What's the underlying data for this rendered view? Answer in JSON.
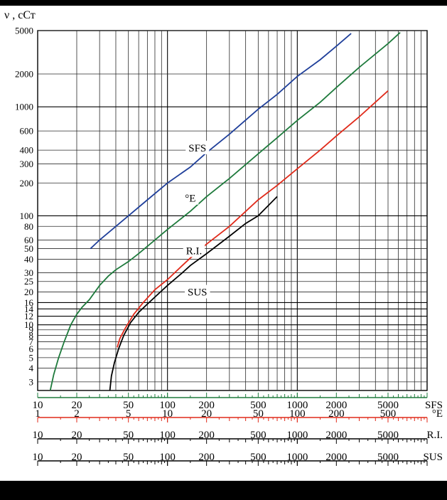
{
  "chart_data": {
    "type": "line",
    "title": "",
    "ylabel": "ν , сСт",
    "yscale": "log",
    "ylim": [
      2.5,
      5000
    ],
    "xscale": "log",
    "xlim": [
      10,
      10000
    ],
    "yticks": [
      3,
      4,
      5,
      6,
      7,
      8,
      9,
      10,
      12,
      14,
      16,
      20,
      25,
      30,
      40,
      50,
      60,
      80,
      100,
      200,
      300,
      400,
      600,
      1000,
      2000,
      5000
    ],
    "series": [
      {
        "name": "SFS",
        "color": "#1f3f9a",
        "label_at": [
          170,
          420
        ],
        "points": [
          [
            25.5,
            50
          ],
          [
            30,
            60
          ],
          [
            40,
            80
          ],
          [
            50,
            100
          ],
          [
            70,
            140
          ],
          [
            100,
            200
          ],
          [
            150,
            280
          ],
          [
            200,
            380
          ],
          [
            300,
            560
          ],
          [
            500,
            950
          ],
          [
            700,
            1300
          ],
          [
            1000,
            1900
          ],
          [
            1500,
            2700
          ],
          [
            2000,
            3600
          ],
          [
            2600,
            4700
          ]
        ]
      },
      {
        "name": "°E",
        "color": "#1e7a3c",
        "label_at": [
          150,
          145
        ],
        "points": [
          [
            12.5,
            2.5
          ],
          [
            13.3,
            3.5
          ],
          [
            14.5,
            5
          ],
          [
            16,
            7
          ],
          [
            18,
            10
          ],
          [
            20,
            12.5
          ],
          [
            22,
            14.5
          ],
          [
            25,
            17
          ],
          [
            30,
            23
          ],
          [
            35,
            28
          ],
          [
            40,
            32
          ],
          [
            50,
            38
          ],
          [
            60,
            45
          ],
          [
            80,
            60
          ],
          [
            100,
            75
          ],
          [
            150,
            110
          ],
          [
            200,
            150
          ],
          [
            300,
            220
          ],
          [
            500,
            370
          ],
          [
            700,
            520
          ],
          [
            1000,
            750
          ],
          [
            1500,
            1100
          ],
          [
            2000,
            1500
          ],
          [
            3000,
            2300
          ],
          [
            5000,
            3800
          ],
          [
            6200,
            4800
          ]
        ]
      },
      {
        "name": "R.I.",
        "color": "#e02a1a",
        "label_at": [
          160,
          48
        ],
        "points": [
          [
            41,
            6.2
          ],
          [
            43,
            7.5
          ],
          [
            47,
            9.2
          ],
          [
            55,
            12.5
          ],
          [
            65,
            16
          ],
          [
            80,
            21
          ],
          [
            100,
            26
          ],
          [
            130,
            35
          ],
          [
            150,
            41
          ],
          [
            200,
            55
          ],
          [
            300,
            80
          ],
          [
            500,
            140
          ],
          [
            700,
            190
          ],
          [
            1000,
            270
          ],
          [
            1500,
            400
          ],
          [
            2000,
            540
          ],
          [
            3000,
            810
          ],
          [
            5000,
            1400
          ]
        ]
      },
      {
        "name": "SUS",
        "color": "#000000",
        "label_at": [
          170,
          20
        ],
        "points": [
          [
            36,
            2.5
          ],
          [
            37,
            3.4
          ],
          [
            39,
            4.5
          ],
          [
            42,
            6
          ],
          [
            46,
            8
          ],
          [
            52,
            10.5
          ],
          [
            60,
            13
          ],
          [
            70,
            15.5
          ],
          [
            80,
            18
          ],
          [
            100,
            23
          ],
          [
            130,
            30
          ],
          [
            150,
            35
          ],
          [
            200,
            45
          ],
          [
            300,
            65
          ],
          [
            400,
            85
          ],
          [
            500,
            100
          ],
          [
            700,
            150
          ]
        ]
      }
    ],
    "scales": [
      {
        "name": "SFS",
        "color": "#1e7a3c",
        "labels": [
          "10",
          "20",
          "50",
          "100",
          "200",
          "500",
          "1000",
          "2000",
          "5000"
        ],
        "label_values": [
          10,
          20,
          50,
          100,
          200,
          500,
          1000,
          2000,
          5000
        ]
      },
      {
        "name": "°E",
        "color": "#e02a1a",
        "labels": [
          "1",
          "2",
          "5",
          "10",
          "20",
          "50",
          "100",
          "200",
          "500"
        ],
        "label_values": [
          1,
          2,
          5,
          10,
          20,
          50,
          100,
          200,
          500
        ]
      },
      {
        "name": "R.I.",
        "color": "#000000",
        "labels": [
          "10",
          "20",
          "50",
          "100",
          "200",
          "500",
          "1000",
          "2000",
          "5000"
        ],
        "label_values": [
          10,
          20,
          50,
          100,
          200,
          500,
          1000,
          2000,
          5000
        ]
      },
      {
        "name": "SUS",
        "color": "#000000",
        "labels": [
          "10",
          "20",
          "50",
          "100",
          "200",
          "500",
          "1000",
          "2000",
          "5000"
        ],
        "label_values": [
          10,
          20,
          50,
          100,
          200,
          500,
          1000,
          2000,
          5000
        ]
      }
    ]
  }
}
